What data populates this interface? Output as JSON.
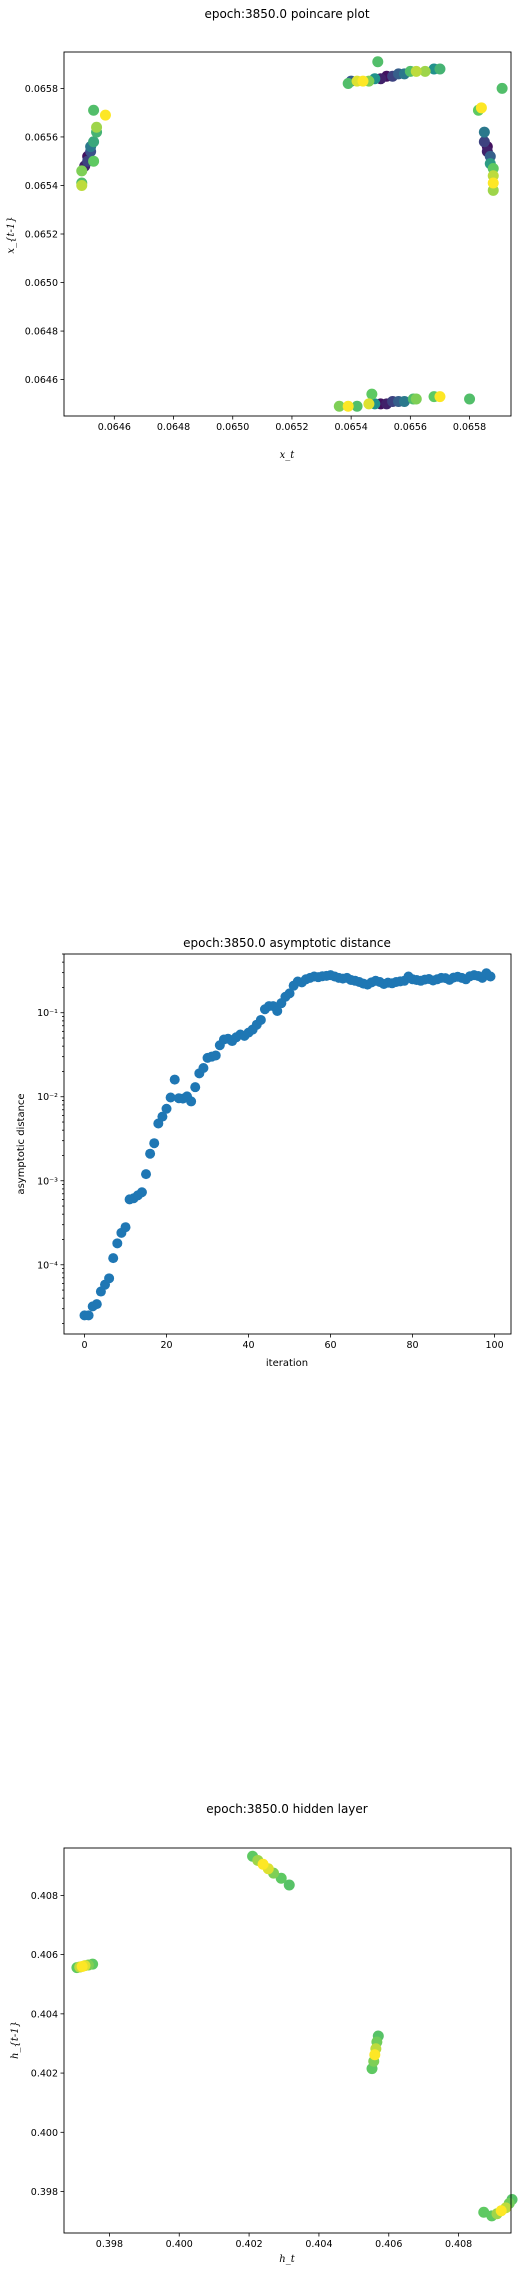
{
  "chart_data": [
    {
      "type": "scatter",
      "title": "epoch:3850.0 poincare plot",
      "xlabel": "x_t",
      "ylabel": "x_{t-1}",
      "xlim": [
        0.06443,
        0.06594
      ],
      "ylim": [
        0.06445,
        0.06595
      ],
      "xticks": [
        {
          "v": 0.0646,
          "label": "0.0646"
        },
        {
          "v": 0.0648,
          "label": "0.0648"
        },
        {
          "v": 0.065,
          "label": "0.0650"
        },
        {
          "v": 0.0652,
          "label": "0.0652"
        },
        {
          "v": 0.0654,
          "label": "0.0654"
        },
        {
          "v": 0.0656,
          "label": "0.0656"
        },
        {
          "v": 0.0658,
          "label": "0.0658"
        }
      ],
      "yticks": [
        {
          "v": 0.0646,
          "label": "0.0646"
        },
        {
          "v": 0.0648,
          "label": "0.0648"
        },
        {
          "v": 0.065,
          "label": "0.0650"
        },
        {
          "v": 0.0652,
          "label": "0.0652"
        },
        {
          "v": 0.0654,
          "label": "0.0654"
        },
        {
          "v": 0.0656,
          "label": "0.0656"
        },
        {
          "v": 0.0658,
          "label": "0.0658"
        }
      ],
      "colormap": [
        "#440154",
        "#3b528b",
        "#21918c",
        "#5ec962",
        "#fde725"
      ],
      "points": [
        {
          "x": 0.06449,
          "y": 0.0654,
          "c": 0.9
        },
        {
          "x": 0.06449,
          "y": 0.06541,
          "c": 0.7
        },
        {
          "x": 0.06449,
          "y": 0.06546,
          "c": 0.8
        },
        {
          "x": 0.0645,
          "y": 0.06548,
          "c": 0.1
        },
        {
          "x": 0.06451,
          "y": 0.0655,
          "c": 0.2
        },
        {
          "x": 0.06451,
          "y": 0.06552,
          "c": 0.05
        },
        {
          "x": 0.06452,
          "y": 0.06554,
          "c": 0.25
        },
        {
          "x": 0.06452,
          "y": 0.06556,
          "c": 0.4
        },
        {
          "x": 0.06453,
          "y": 0.06558,
          "c": 0.6
        },
        {
          "x": 0.06453,
          "y": 0.0655,
          "c": 0.75
        },
        {
          "x": 0.06454,
          "y": 0.06564,
          "c": 0.85
        },
        {
          "x": 0.06453,
          "y": 0.06571,
          "c": 0.7
        },
        {
          "x": 0.06457,
          "y": 0.06569,
          "c": 1.0
        },
        {
          "x": 0.06454,
          "y": 0.06562,
          "c": 0.65
        },
        {
          "x": 0.06539,
          "y": 0.06582,
          "c": 0.7
        },
        {
          "x": 0.0654,
          "y": 0.06583,
          "c": 0.3
        },
        {
          "x": 0.06542,
          "y": 0.06583,
          "c": 0.95
        },
        {
          "x": 0.06546,
          "y": 0.06583,
          "c": 0.8
        },
        {
          "x": 0.06548,
          "y": 0.06584,
          "c": 0.5
        },
        {
          "x": 0.0655,
          "y": 0.06584,
          "c": 0.1
        },
        {
          "x": 0.06552,
          "y": 0.06585,
          "c": 0.05
        },
        {
          "x": 0.06554,
          "y": 0.06585,
          "c": 0.2
        },
        {
          "x": 0.06556,
          "y": 0.06586,
          "c": 0.3
        },
        {
          "x": 0.06558,
          "y": 0.06586,
          "c": 0.4
        },
        {
          "x": 0.0656,
          "y": 0.06587,
          "c": 0.7
        },
        {
          "x": 0.06562,
          "y": 0.06587,
          "c": 0.9
        },
        {
          "x": 0.06565,
          "y": 0.06587,
          "c": 0.85
        },
        {
          "x": 0.06568,
          "y": 0.06588,
          "c": 0.5
        },
        {
          "x": 0.0657,
          "y": 0.06588,
          "c": 0.65
        },
        {
          "x": 0.06549,
          "y": 0.06591,
          "c": 0.7
        },
        {
          "x": 0.06544,
          "y": 0.06583,
          "c": 1.0
        },
        {
          "x": 0.06591,
          "y": 0.0658,
          "c": 0.7
        },
        {
          "x": 0.06583,
          "y": 0.06571,
          "c": 0.75
        },
        {
          "x": 0.06584,
          "y": 0.06572,
          "c": 1.0
        },
        {
          "x": 0.06585,
          "y": 0.06562,
          "c": 0.4
        },
        {
          "x": 0.06585,
          "y": 0.06558,
          "c": 0.2
        },
        {
          "x": 0.06586,
          "y": 0.06556,
          "c": 0.05
        },
        {
          "x": 0.06586,
          "y": 0.06554,
          "c": 0.1
        },
        {
          "x": 0.06587,
          "y": 0.06552,
          "c": 0.3
        },
        {
          "x": 0.06587,
          "y": 0.06549,
          "c": 0.55
        },
        {
          "x": 0.06588,
          "y": 0.06547,
          "c": 0.75
        },
        {
          "x": 0.06588,
          "y": 0.06544,
          "c": 0.9
        },
        {
          "x": 0.06588,
          "y": 0.06541,
          "c": 1.0
        },
        {
          "x": 0.06588,
          "y": 0.06538,
          "c": 0.85
        },
        {
          "x": 0.06536,
          "y": 0.06449,
          "c": 0.8
        },
        {
          "x": 0.06539,
          "y": 0.06449,
          "c": 1.0
        },
        {
          "x": 0.06542,
          "y": 0.06449,
          "c": 0.7
        },
        {
          "x": 0.06546,
          "y": 0.0645,
          "c": 0.95
        },
        {
          "x": 0.06548,
          "y": 0.0645,
          "c": 0.5
        },
        {
          "x": 0.0655,
          "y": 0.0645,
          "c": 0.05
        },
        {
          "x": 0.06552,
          "y": 0.0645,
          "c": 0.1
        },
        {
          "x": 0.06554,
          "y": 0.06451,
          "c": 0.2
        },
        {
          "x": 0.06556,
          "y": 0.06451,
          "c": 0.3
        },
        {
          "x": 0.06558,
          "y": 0.06451,
          "c": 0.4
        },
        {
          "x": 0.06561,
          "y": 0.06452,
          "c": 0.7
        },
        {
          "x": 0.06562,
          "y": 0.06452,
          "c": 0.8
        },
        {
          "x": 0.06568,
          "y": 0.06453,
          "c": 0.75
        },
        {
          "x": 0.0657,
          "y": 0.06453,
          "c": 1.0
        },
        {
          "x": 0.0658,
          "y": 0.06452,
          "c": 0.7
        },
        {
          "x": 0.06547,
          "y": 0.06454,
          "c": 0.75
        }
      ]
    },
    {
      "type": "scatter",
      "title": "epoch:3850.0 asymptotic distance",
      "xlabel": "iteration",
      "ylabel": "asymptotic distance",
      "yscale": "log",
      "xlim": [
        -5,
        104
      ],
      "ylim": [
        1.5e-05,
        0.5
      ],
      "xticks": [
        {
          "v": 0,
          "label": "0"
        },
        {
          "v": 20,
          "label": "20"
        },
        {
          "v": 40,
          "label": "40"
        },
        {
          "v": 60,
          "label": "60"
        },
        {
          "v": 80,
          "label": "80"
        },
        {
          "v": 100,
          "label": "100"
        }
      ],
      "yticks": [
        {
          "v": 0.0001,
          "label": "10⁻⁴"
        },
        {
          "v": 0.001,
          "label": "10⁻³"
        },
        {
          "v": 0.01,
          "label": "10⁻²"
        },
        {
          "v": 0.1,
          "label": "10⁻¹"
        }
      ],
      "color": "#1f77b4",
      "x": [
        0,
        1,
        2,
        3,
        4,
        5,
        6,
        7,
        8,
        9,
        10,
        11,
        12,
        13,
        14,
        15,
        16,
        17,
        18,
        19,
        20,
        21,
        22,
        23,
        24,
        25,
        26,
        27,
        28,
        29,
        30,
        31,
        32,
        33,
        34,
        35,
        36,
        37,
        38,
        39,
        40,
        41,
        42,
        43,
        44,
        45,
        46,
        47,
        48,
        49,
        50,
        51,
        52,
        53,
        54,
        55,
        56,
        57,
        58,
        59,
        60,
        61,
        62,
        63,
        64,
        65,
        66,
        67,
        68,
        69,
        70,
        71,
        72,
        73,
        74,
        75,
        76,
        77,
        78,
        79,
        80,
        81,
        82,
        83,
        84,
        85,
        86,
        87,
        88,
        89,
        90,
        91,
        92,
        93,
        94,
        95,
        96,
        97,
        98,
        99
      ],
      "y": [
        2.5e-05,
        2.5e-05,
        3.2e-05,
        3.4e-05,
        4.8e-05,
        5.8e-05,
        6.9e-05,
        0.00012,
        0.00018,
        0.00024,
        0.00028,
        0.0006,
        0.00062,
        0.00067,
        0.00073,
        0.0012,
        0.0021,
        0.0028,
        0.0048,
        0.0058,
        0.0072,
        0.0098,
        0.016,
        0.0096,
        0.0095,
        0.0101,
        0.0088,
        0.013,
        0.019,
        0.022,
        0.029,
        0.03,
        0.031,
        0.041,
        0.048,
        0.049,
        0.046,
        0.051,
        0.055,
        0.053,
        0.058,
        0.063,
        0.072,
        0.082,
        0.11,
        0.12,
        0.12,
        0.105,
        0.13,
        0.155,
        0.17,
        0.21,
        0.235,
        0.23,
        0.25,
        0.26,
        0.27,
        0.265,
        0.272,
        0.275,
        0.28,
        0.27,
        0.26,
        0.255,
        0.26,
        0.245,
        0.24,
        0.232,
        0.222,
        0.216,
        0.23,
        0.24,
        0.232,
        0.22,
        0.228,
        0.224,
        0.232,
        0.236,
        0.24,
        0.27,
        0.25,
        0.245,
        0.24,
        0.248,
        0.252,
        0.242,
        0.25,
        0.26,
        0.258,
        0.246,
        0.262,
        0.268,
        0.26,
        0.25,
        0.272,
        0.28,
        0.274,
        0.26,
        0.295,
        0.27
      ]
    },
    {
      "type": "scatter",
      "title": "epoch:3850.0 hidden layer",
      "xlabel": "h_t",
      "ylabel": "h_{t-1}",
      "xlim": [
        0.3967,
        0.4095
      ],
      "ylim": [
        0.3966,
        0.4096
      ],
      "xticks": [
        {
          "v": 0.398,
          "label": "0.398"
        },
        {
          "v": 0.4,
          "label": "0.400"
        },
        {
          "v": 0.402,
          "label": "0.402"
        },
        {
          "v": 0.404,
          "label": "0.404"
        },
        {
          "v": 0.406,
          "label": "0.406"
        },
        {
          "v": 0.408,
          "label": "0.408"
        }
      ],
      "yticks": [
        {
          "v": 0.398,
          "label": "0.398"
        },
        {
          "v": 0.4,
          "label": "0.400"
        },
        {
          "v": 0.402,
          "label": "0.402"
        },
        {
          "v": 0.404,
          "label": "0.404"
        },
        {
          "v": 0.406,
          "label": "0.406"
        },
        {
          "v": 0.408,
          "label": "0.408"
        }
      ],
      "colormap": [
        "#440154",
        "#3b528b",
        "#21918c",
        "#5ec962",
        "#fde725"
      ],
      "points": [
        {
          "x": 0.39707,
          "y": 0.40556,
          "c": 0.75
        },
        {
          "x": 0.39715,
          "y": 0.40558,
          "c": 0.9
        },
        {
          "x": 0.39722,
          "y": 0.4056,
          "c": 1.0
        },
        {
          "x": 0.3973,
          "y": 0.40563,
          "c": 0.95
        },
        {
          "x": 0.3974,
          "y": 0.40565,
          "c": 0.8
        },
        {
          "x": 0.39752,
          "y": 0.40568,
          "c": 0.75
        },
        {
          "x": 0.4021,
          "y": 0.40932,
          "c": 0.75
        },
        {
          "x": 0.40225,
          "y": 0.40918,
          "c": 0.85
        },
        {
          "x": 0.4024,
          "y": 0.40905,
          "c": 1.0
        },
        {
          "x": 0.40255,
          "y": 0.4089,
          "c": 0.95
        },
        {
          "x": 0.4027,
          "y": 0.40875,
          "c": 0.8
        },
        {
          "x": 0.40292,
          "y": 0.40858,
          "c": 0.75
        },
        {
          "x": 0.40315,
          "y": 0.40835,
          "c": 0.72
        },
        {
          "x": 0.40552,
          "y": 0.40215,
          "c": 0.75
        },
        {
          "x": 0.40557,
          "y": 0.4024,
          "c": 0.8
        },
        {
          "x": 0.4056,
          "y": 0.40262,
          "c": 1.0
        },
        {
          "x": 0.40563,
          "y": 0.40282,
          "c": 0.9
        },
        {
          "x": 0.40566,
          "y": 0.40305,
          "c": 0.78
        },
        {
          "x": 0.4057,
          "y": 0.40325,
          "c": 0.72
        },
        {
          "x": 0.40872,
          "y": 0.3973,
          "c": 0.75
        },
        {
          "x": 0.40895,
          "y": 0.39718,
          "c": 0.75
        },
        {
          "x": 0.4091,
          "y": 0.39725,
          "c": 0.85
        },
        {
          "x": 0.40922,
          "y": 0.39735,
          "c": 1.0
        },
        {
          "x": 0.40935,
          "y": 0.39745,
          "c": 0.9
        },
        {
          "x": 0.40945,
          "y": 0.3976,
          "c": 0.78
        },
        {
          "x": 0.40953,
          "y": 0.39773,
          "c": 0.72
        }
      ]
    }
  ]
}
